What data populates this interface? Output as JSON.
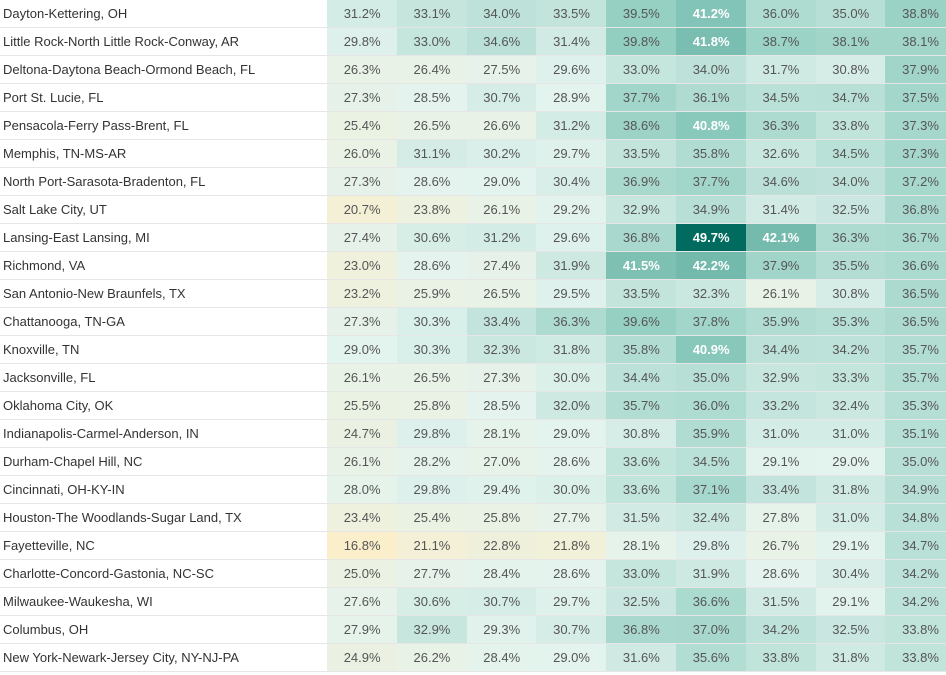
{
  "chart_data": {
    "type": "heatmap",
    "rows": [
      {
        "label": "Dayton-Kettering, OH",
        "values": [
          31.2,
          33.1,
          34.0,
          33.5,
          39.5,
          41.2,
          36.0,
          35.0,
          38.8
        ],
        "display": [
          "31.2%",
          "33.1%",
          "34.0%",
          "33.5%",
          "39.5%",
          "41.2%",
          "36.0%",
          "35.0%",
          "38.8%"
        ]
      },
      {
        "label": "Little Rock-North Little Rock-Conway, AR",
        "values": [
          29.8,
          33.0,
          34.6,
          31.4,
          39.8,
          41.8,
          38.7,
          38.1,
          38.1
        ],
        "display": [
          "29.8%",
          "33.0%",
          "34.6%",
          "31.4%",
          "39.8%",
          "41.8%",
          "38.7%",
          "38.1%",
          "38.1%"
        ]
      },
      {
        "label": "Deltona-Daytona Beach-Ormond Beach, FL",
        "values": [
          26.3,
          26.4,
          27.5,
          29.6,
          33.0,
          34.0,
          31.7,
          30.8,
          37.9
        ],
        "display": [
          "26.3%",
          "26.4%",
          "27.5%",
          "29.6%",
          "33.0%",
          "34.0%",
          "31.7%",
          "30.8%",
          "37.9%"
        ]
      },
      {
        "label": "Port St. Lucie, FL",
        "values": [
          27.3,
          28.5,
          30.7,
          28.9,
          37.7,
          36.1,
          34.5,
          34.7,
          37.5
        ],
        "display": [
          "27.3%",
          "28.5%",
          "30.7%",
          "28.9%",
          "37.7%",
          "36.1%",
          "34.5%",
          "34.7%",
          "37.5%"
        ]
      },
      {
        "label": "Pensacola-Ferry Pass-Brent, FL",
        "values": [
          25.4,
          26.5,
          26.6,
          31.2,
          38.6,
          40.8,
          36.3,
          33.8,
          37.3
        ],
        "display": [
          "25.4%",
          "26.5%",
          "26.6%",
          "31.2%",
          "38.6%",
          "40.8%",
          "36.3%",
          "33.8%",
          "37.3%"
        ]
      },
      {
        "label": "Memphis, TN-MS-AR",
        "values": [
          26.0,
          31.1,
          30.2,
          29.7,
          33.5,
          35.8,
          32.6,
          34.5,
          37.3
        ],
        "display": [
          "26.0%",
          "31.1%",
          "30.2%",
          "29.7%",
          "33.5%",
          "35.8%",
          "32.6%",
          "34.5%",
          "37.3%"
        ]
      },
      {
        "label": "North Port-Sarasota-Bradenton, FL",
        "values": [
          27.3,
          28.6,
          29.0,
          30.4,
          36.9,
          37.7,
          34.6,
          34.0,
          37.2
        ],
        "display": [
          "27.3%",
          "28.6%",
          "29.0%",
          "30.4%",
          "36.9%",
          "37.7%",
          "34.6%",
          "34.0%",
          "37.2%"
        ]
      },
      {
        "label": "Salt Lake City, UT",
        "values": [
          20.7,
          23.8,
          26.1,
          29.2,
          32.9,
          34.9,
          31.4,
          32.5,
          36.8
        ],
        "display": [
          "20.7%",
          "23.8%",
          "26.1%",
          "29.2%",
          "32.9%",
          "34.9%",
          "31.4%",
          "32.5%",
          "36.8%"
        ]
      },
      {
        "label": "Lansing-East Lansing, MI",
        "values": [
          27.4,
          30.6,
          31.2,
          29.6,
          36.8,
          49.7,
          42.1,
          36.3,
          36.7
        ],
        "display": [
          "27.4%",
          "30.6%",
          "31.2%",
          "29.6%",
          "36.8%",
          "49.7%",
          "42.1%",
          "36.3%",
          "36.7%"
        ]
      },
      {
        "label": "Richmond, VA",
        "values": [
          23.0,
          28.6,
          27.4,
          31.9,
          41.5,
          42.2,
          37.9,
          35.5,
          36.6
        ],
        "display": [
          "23.0%",
          "28.6%",
          "27.4%",
          "31.9%",
          "41.5%",
          "42.2%",
          "37.9%",
          "35.5%",
          "36.6%"
        ]
      },
      {
        "label": "San Antonio-New Braunfels, TX",
        "values": [
          23.2,
          25.9,
          26.5,
          29.5,
          33.5,
          32.3,
          26.1,
          30.8,
          36.5
        ],
        "display": [
          "23.2%",
          "25.9%",
          "26.5%",
          "29.5%",
          "33.5%",
          "32.3%",
          "26.1%",
          "30.8%",
          "36.5%"
        ]
      },
      {
        "label": "Chattanooga, TN-GA",
        "values": [
          27.3,
          30.3,
          33.4,
          36.3,
          39.6,
          37.8,
          35.9,
          35.3,
          36.5
        ],
        "display": [
          "27.3%",
          "30.3%",
          "33.4%",
          "36.3%",
          "39.6%",
          "37.8%",
          "35.9%",
          "35.3%",
          "36.5%"
        ]
      },
      {
        "label": "Knoxville, TN",
        "values": [
          29.0,
          30.3,
          32.3,
          31.8,
          35.8,
          40.9,
          34.4,
          34.2,
          35.7
        ],
        "display": [
          "29.0%",
          "30.3%",
          "32.3%",
          "31.8%",
          "35.8%",
          "40.9%",
          "34.4%",
          "34.2%",
          "35.7%"
        ]
      },
      {
        "label": "Jacksonville, FL",
        "values": [
          26.1,
          26.5,
          27.3,
          30.0,
          34.4,
          35.0,
          32.9,
          33.3,
          35.7
        ],
        "display": [
          "26.1%",
          "26.5%",
          "27.3%",
          "30.0%",
          "34.4%",
          "35.0%",
          "32.9%",
          "33.3%",
          "35.7%"
        ]
      },
      {
        "label": "Oklahoma City, OK",
        "values": [
          25.5,
          25.8,
          28.5,
          32.0,
          35.7,
          36.0,
          33.2,
          32.4,
          35.3
        ],
        "display": [
          "25.5%",
          "25.8%",
          "28.5%",
          "32.0%",
          "35.7%",
          "36.0%",
          "33.2%",
          "32.4%",
          "35.3%"
        ]
      },
      {
        "label": "Indianapolis-Carmel-Anderson, IN",
        "values": [
          24.7,
          29.8,
          28.1,
          29.0,
          30.8,
          35.9,
          31.0,
          31.0,
          35.1
        ],
        "display": [
          "24.7%",
          "29.8%",
          "28.1%",
          "29.0%",
          "30.8%",
          "35.9%",
          "31.0%",
          "31.0%",
          "35.1%"
        ]
      },
      {
        "label": "Durham-Chapel Hill, NC",
        "values": [
          26.1,
          28.2,
          27.0,
          28.6,
          33.6,
          34.5,
          29.1,
          29.0,
          35.0
        ],
        "display": [
          "26.1%",
          "28.2%",
          "27.0%",
          "28.6%",
          "33.6%",
          "34.5%",
          "29.1%",
          "29.0%",
          "35.0%"
        ]
      },
      {
        "label": "Cincinnati, OH-KY-IN",
        "values": [
          28.0,
          29.8,
          29.4,
          30.0,
          33.6,
          37.1,
          33.4,
          31.8,
          34.9
        ],
        "display": [
          "28.0%",
          "29.8%",
          "29.4%",
          "30.0%",
          "33.6%",
          "37.1%",
          "33.4%",
          "31.8%",
          "34.9%"
        ]
      },
      {
        "label": "Houston-The Woodlands-Sugar Land, TX",
        "values": [
          23.4,
          25.4,
          25.8,
          27.7,
          31.5,
          32.4,
          27.8,
          31.0,
          34.8
        ],
        "display": [
          "23.4%",
          "25.4%",
          "25.8%",
          "27.7%",
          "31.5%",
          "32.4%",
          "27.8%",
          "31.0%",
          "34.8%"
        ]
      },
      {
        "label": "Fayetteville, NC",
        "values": [
          16.8,
          21.1,
          22.8,
          21.8,
          28.1,
          29.8,
          26.7,
          29.1,
          34.7
        ],
        "display": [
          "16.8%",
          "21.1%",
          "22.8%",
          "21.8%",
          "28.1%",
          "29.8%",
          "26.7%",
          "29.1%",
          "34.7%"
        ]
      },
      {
        "label": "Charlotte-Concord-Gastonia, NC-SC",
        "values": [
          25.0,
          27.7,
          28.4,
          28.6,
          33.0,
          31.9,
          28.6,
          30.4,
          34.2
        ],
        "display": [
          "25.0%",
          "27.7%",
          "28.4%",
          "28.6%",
          "33.0%",
          "31.9%",
          "28.6%",
          "30.4%",
          "34.2%"
        ]
      },
      {
        "label": "Milwaukee-Waukesha, WI",
        "values": [
          27.6,
          30.6,
          30.7,
          29.7,
          32.5,
          36.6,
          31.5,
          29.1,
          34.2
        ],
        "display": [
          "27.6%",
          "30.6%",
          "30.7%",
          "29.7%",
          "32.5%",
          "36.6%",
          "31.5%",
          "29.1%",
          "34.2%"
        ]
      },
      {
        "label": "Columbus, OH",
        "values": [
          27.9,
          32.9,
          29.3,
          30.7,
          36.8,
          37.0,
          34.2,
          32.5,
          33.8
        ],
        "display": [
          "27.9%",
          "32.9%",
          "29.3%",
          "30.7%",
          "36.8%",
          "37.0%",
          "34.2%",
          "32.5%",
          "33.8%"
        ]
      },
      {
        "label": "New York-Newark-Jersey City, NY-NJ-PA",
        "values": [
          24.9,
          26.2,
          28.4,
          29.0,
          31.6,
          35.6,
          33.8,
          31.8,
          33.8
        ],
        "display": [
          "24.9%",
          "26.2%",
          "28.4%",
          "29.0%",
          "31.6%",
          "35.6%",
          "33.8%",
          "31.8%",
          "33.8%"
        ]
      }
    ],
    "color_scale": {
      "low": "#fbeecb",
      "mid": "#e3f3ee",
      "high": "#006b5e",
      "domain": [
        16.8,
        29.0,
        49.7
      ]
    },
    "grid": false
  }
}
